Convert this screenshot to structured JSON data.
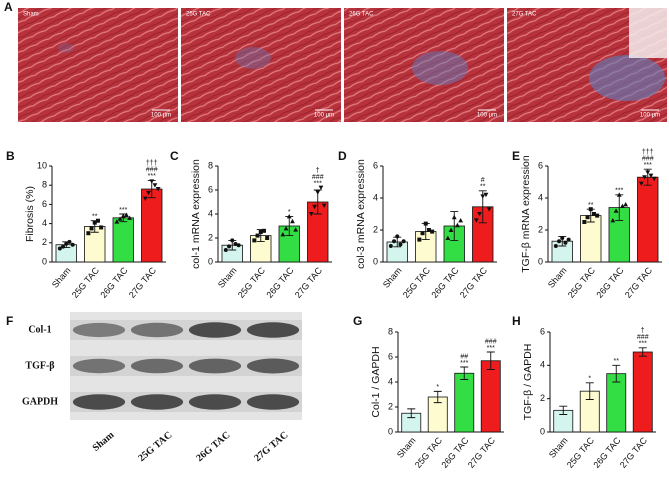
{
  "chart_data": [
    {
      "type": "image-grid",
      "panel": "A",
      "labels": [
        "Sham",
        "25G TAC",
        "26G TAC",
        "27G TAC"
      ],
      "scale_bar": "100 μm"
    },
    {
      "type": "bar",
      "panel": "B",
      "ylabel": "Fibrosis (%)",
      "categories": [
        "Sham",
        "25G TAC",
        "26G TAC",
        "27G TAC"
      ],
      "colors": [
        "#d4f4ee",
        "#fdfbcf",
        "#33dd44",
        "#ee1c1c"
      ],
      "values": [
        1.8,
        3.7,
        4.6,
        7.6
      ],
      "errors": [
        0.3,
        0.6,
        0.4,
        0.9
      ],
      "points": [
        [
          1.4,
          1.6,
          1.9,
          2.1,
          1.8
        ],
        [
          3.0,
          3.5,
          4.1,
          4.3,
          3.6
        ],
        [
          4.2,
          4.5,
          4.8,
          4.9,
          4.6
        ],
        [
          6.6,
          7.2,
          8.4,
          8.0,
          7.6
        ]
      ],
      "annotations": [
        [],
        [
          "**"
        ],
        [
          "***"
        ],
        [
          "†††",
          "###",
          "***"
        ]
      ],
      "ylim": [
        0,
        10
      ],
      "yticks": [
        0,
        2,
        4,
        6,
        8,
        10
      ]
    },
    {
      "type": "bar",
      "panel": "C",
      "ylabel": "col-1 mRNA expression",
      "categories": [
        "Sham",
        "25G TAC",
        "26G TAC",
        "27G TAC"
      ],
      "colors": [
        "#d4f4ee",
        "#fdfbcf",
        "#33dd44",
        "#ee1c1c"
      ],
      "values": [
        1.4,
        2.2,
        3.0,
        5.0
      ],
      "errors": [
        0.4,
        0.5,
        0.8,
        1.0
      ],
      "points": [
        [
          1.0,
          1.3,
          1.8,
          1.5,
          1.4
        ],
        [
          1.8,
          2.2,
          2.5,
          2.6,
          2.0
        ],
        [
          2.3,
          2.8,
          3.8,
          3.4,
          2.7
        ],
        [
          4.0,
          4.6,
          5.8,
          6.2,
          4.7
        ]
      ],
      "annotations": [
        [],
        [],
        [
          "*"
        ],
        [
          "†",
          "###",
          "***"
        ]
      ],
      "ylim": [
        0,
        8
      ],
      "yticks": [
        0,
        2,
        4,
        6,
        8
      ]
    },
    {
      "type": "bar",
      "panel": "D",
      "ylabel": "col-3 mRNA expression",
      "categories": [
        "Sham",
        "25G TAC",
        "26G TAC",
        "27G TAC"
      ],
      "colors": [
        "#d4f4ee",
        "#fdfbcf",
        "#33dd44",
        "#ee1c1c"
      ],
      "values": [
        1.25,
        1.9,
        2.25,
        3.45
      ],
      "errors": [
        0.3,
        0.5,
        0.9,
        1.0
      ],
      "points": [
        [
          1.0,
          1.3,
          1.6,
          1.1,
          1.3
        ],
        [
          1.4,
          1.8,
          2.4,
          2.0,
          1.9
        ],
        [
          1.5,
          2.0,
          2.8,
          2.3,
          2.6
        ],
        [
          2.6,
          3.0,
          4.1,
          4.2,
          3.3
        ]
      ],
      "annotations": [
        [],
        [],
        [],
        [
          "#",
          "**"
        ]
      ],
      "ylim": [
        0,
        6
      ],
      "yticks": [
        0,
        2,
        4,
        6
      ]
    },
    {
      "type": "bar",
      "panel": "E",
      "ylabel": "TGF-β mRNA expression",
      "categories": [
        "Sham",
        "25G TAC",
        "26G TAC",
        "27G TAC"
      ],
      "colors": [
        "#d4f4ee",
        "#fdfbcf",
        "#33dd44",
        "#ee1c1c"
      ],
      "values": [
        1.3,
        2.9,
        3.4,
        5.3
      ],
      "errors": [
        0.3,
        0.4,
        0.8,
        0.5
      ],
      "points": [
        [
          1.0,
          1.3,
          1.5,
          1.2,
          1.4
        ],
        [
          2.5,
          2.8,
          3.3,
          3.0,
          2.9
        ],
        [
          2.6,
          3.2,
          4.2,
          3.5,
          3.6
        ],
        [
          4.9,
          5.3,
          5.6,
          5.4,
          5.2
        ]
      ],
      "annotations": [
        [],
        [
          "**"
        ],
        [
          "***"
        ],
        [
          "†††",
          "###",
          "***"
        ]
      ],
      "ylim": [
        0,
        6
      ],
      "yticks": [
        0,
        2,
        4,
        6
      ]
    },
    {
      "type": "blot",
      "panel": "F",
      "rows": [
        "Col-1",
        "TGF-β",
        "GAPDH"
      ],
      "categories": [
        "Sham",
        "25G TAC",
        "26G TAC",
        "27G TAC"
      ]
    },
    {
      "type": "bar",
      "panel": "G",
      "ylabel": "Col-1 / GAPDH",
      "categories": [
        "Sham",
        "25G TAC",
        "26G TAC",
        "27G TAC"
      ],
      "colors": [
        "#d4f4ee",
        "#fdfbcf",
        "#33dd44",
        "#ee1c1c"
      ],
      "values": [
        1.5,
        2.8,
        4.7,
        5.7
      ],
      "errors": [
        0.35,
        0.45,
        0.5,
        0.7
      ],
      "annotations": [
        [],
        [
          "*"
        ],
        [
          "##",
          "***"
        ],
        [
          "###",
          "***"
        ]
      ],
      "ylim": [
        0,
        8
      ],
      "yticks": [
        0,
        2,
        4,
        6,
        8
      ]
    },
    {
      "type": "bar",
      "panel": "H",
      "ylabel": "TGF-β / GAPDH",
      "categories": [
        "Sham",
        "25G TAC",
        "26G TAC",
        "27G TAC"
      ],
      "colors": [
        "#d4f4ee",
        "#fdfbcf",
        "#33dd44",
        "#ee1c1c"
      ],
      "values": [
        1.3,
        2.45,
        3.5,
        4.8
      ],
      "errors": [
        0.25,
        0.5,
        0.5,
        0.25
      ],
      "annotations": [
        [],
        [
          "*"
        ],
        [
          "**"
        ],
        [
          "†",
          "###",
          "***"
        ]
      ],
      "ylim": [
        0,
        6
      ],
      "yticks": [
        0,
        2,
        4,
        6
      ]
    }
  ]
}
